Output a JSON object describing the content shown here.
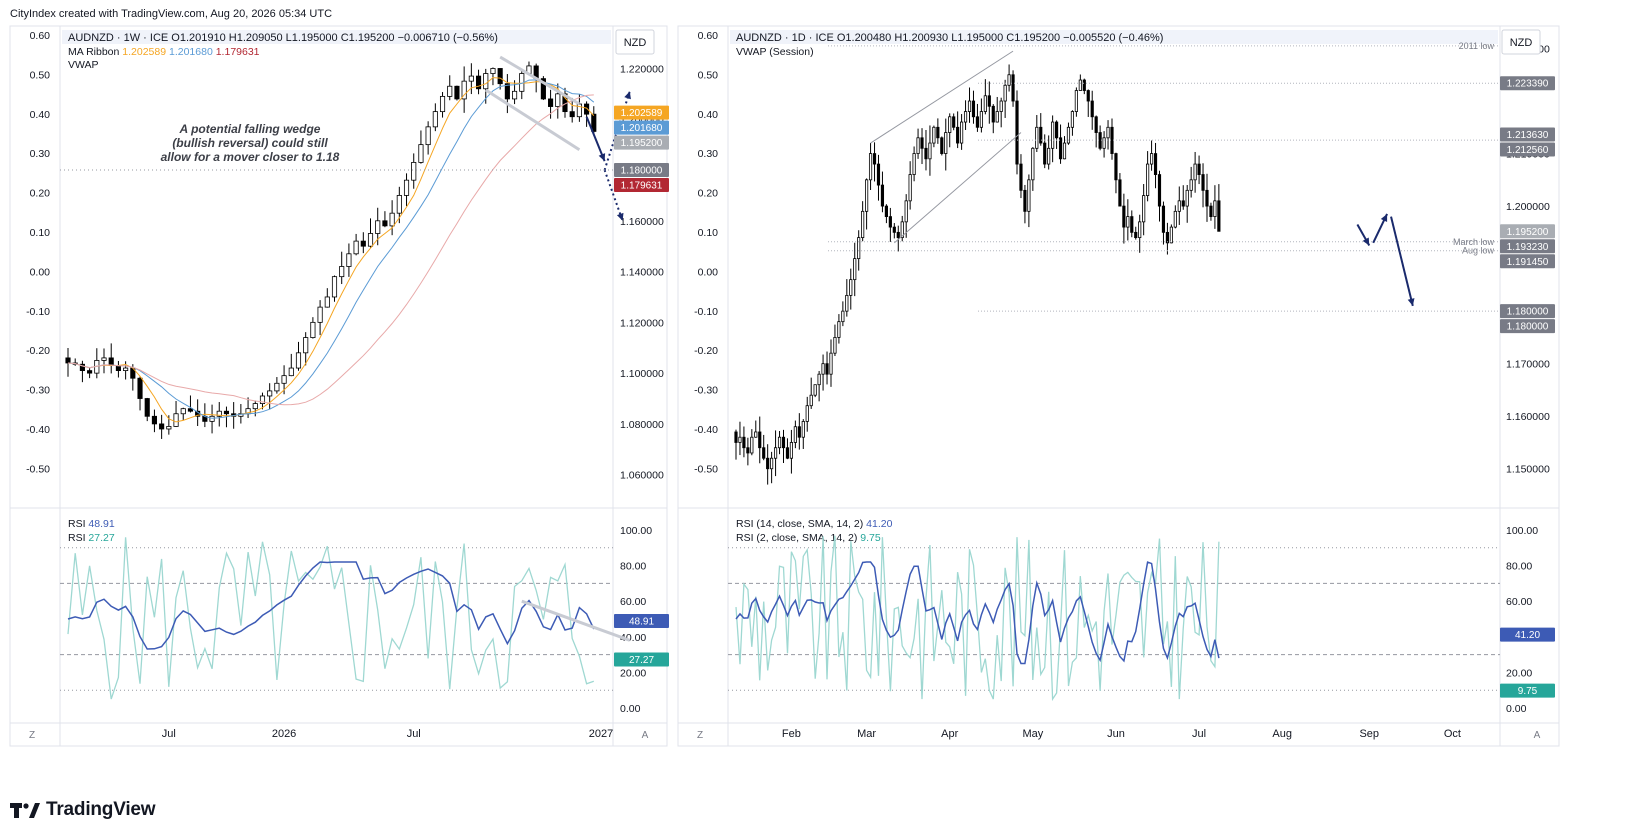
{
  "attribution": "CityIndex created with TradingView.com, Aug 20, 2026 05:34 UTC",
  "brand": "TradingView",
  "colors": {
    "up_candle": "#ffffff",
    "down_candle": "#000000",
    "ma_fast": "#f5a623",
    "ma_mid": "#5b9bd5",
    "ma_slow": "#e8a9a9",
    "rsi14": "#3d5bb5",
    "rsi2": "#9fd8d2",
    "arrow": "#1a2a6c"
  },
  "chart_data": [
    {
      "type": "candlestick",
      "title": "AUDNZD · 1W · ICE",
      "ohlc": "O1.201910 H1.209050 L1.195000 C1.195200 −0.006710 (−0.56%)",
      "currency": "NZD",
      "ma_ribbon": {
        "label": "MA Ribbon",
        "values": [
          "1.202589",
          "1.201680",
          "1.179631"
        ]
      },
      "vwap_label": "VWAP",
      "right_axis": {
        "ticks": [
          "1.220000",
          "1.200000",
          "1.180000",
          "1.160000",
          "1.140000",
          "1.120000",
          "1.100000",
          "1.080000",
          "1.060000"
        ],
        "range": [
          1.052,
          1.232
        ]
      },
      "left_axis": {
        "ticks": [
          "0.60",
          "0.50",
          "0.40",
          "0.30",
          "0.20",
          "0.10",
          "0.00",
          "-0.10",
          "-0.20",
          "-0.30",
          "-0.40",
          "-0.50"
        ]
      },
      "price_tags": [
        {
          "text": "1.202589",
          "value": 1.202589,
          "color": "#f5a623"
        },
        {
          "text": "1.201680",
          "value": 1.20168,
          "color": "#5b9bd5"
        },
        {
          "text": "1.195200",
          "value": 1.1952,
          "color": "#a9adb3"
        },
        {
          "text": "1.180000",
          "value": 1.18,
          "color": "#787b86"
        },
        {
          "text": "1.179631",
          "value": 1.179631,
          "color": "#b22833"
        }
      ],
      "x_labels": [
        {
          "text": "Jul",
          "index": 14
        },
        {
          "text": "2026",
          "index": 30
        },
        {
          "text": "Jul",
          "index": 48
        },
        {
          "text": "2027",
          "index": 74
        }
      ],
      "annotation": [
        "A potential falling wedge",
        "(bullish reversal) could still",
        "allow for a mover closer to 1.18"
      ],
      "series_close": [
        1.104,
        1.1035,
        1.101,
        1.1,
        1.105,
        1.106,
        1.103,
        1.101,
        1.102,
        1.098,
        1.09,
        1.083,
        1.08,
        1.078,
        1.079,
        1.084,
        1.086,
        1.085,
        1.083,
        1.081,
        1.083,
        1.085,
        1.084,
        1.083,
        1.084,
        1.086,
        1.088,
        1.091,
        1.093,
        1.096,
        1.099,
        1.102,
        1.108,
        1.114,
        1.12,
        1.126,
        1.13,
        1.138,
        1.142,
        1.147,
        1.152,
        1.15,
        1.155,
        1.16,
        1.158,
        1.163,
        1.17,
        1.176,
        1.183,
        1.19,
        1.197,
        1.203,
        1.209,
        1.213,
        1.208,
        1.215,
        1.217,
        1.212,
        1.218,
        1.22,
        1.214,
        1.208,
        1.211,
        1.218,
        1.221,
        1.216,
        1.208,
        1.205,
        1.21,
        1.203,
        1.201,
        1.206,
        1.202,
        1.1952
      ],
      "rsi": {
        "labels": [
          "RSI",
          "RSI"
        ],
        "values": [
          "48.91",
          "27.27"
        ],
        "ticks": [
          "100.00",
          "80.00",
          "60.00",
          "40.00",
          "20.00",
          "0.00"
        ],
        "levels": [
          90,
          70,
          30,
          10
        ]
      }
    },
    {
      "type": "candlestick",
      "title": "AUDNZD · 1D · ICE",
      "ohlc": "O1.200480 H1.200930 L1.195000 C1.195200 −0.005520 (−0.46%)",
      "currency": "NZD",
      "vwap_label": "VWAP (Session)",
      "right_axis": {
        "ticks": [
          "1.230000",
          "1.210000",
          "1.200000",
          "1.170000",
          "1.160000",
          "1.150000"
        ],
        "range": [
          1.145,
          1.232
        ]
      },
      "left_axis": {
        "ticks": [
          "0.60",
          "0.50",
          "0.40",
          "0.30",
          "0.20",
          "0.10",
          "0.00",
          "-0.10",
          "-0.20",
          "-0.30",
          "-0.40",
          "-0.50"
        ]
      },
      "price_tags": [
        {
          "text": "1.223390",
          "value": 1.22339,
          "color": "#787b86"
        },
        {
          "text": "1.213630",
          "value": 1.21363,
          "color": "#787b86"
        },
        {
          "text": "1.212560",
          "value": 1.21256,
          "color": "#787b86"
        },
        {
          "text": "1.195200",
          "value": 1.1952,
          "color": "#a9adb3"
        },
        {
          "text": "1.193230",
          "value": 1.19323,
          "color": "#787b86"
        },
        {
          "text": "1.191450",
          "value": 1.19145,
          "color": "#787b86"
        },
        {
          "text": "1.180000",
          "value": 1.18,
          "color": "#787b86"
        },
        {
          "text": "1.180000",
          "value": 1.18,
          "color": "#787b86"
        }
      ],
      "level_labels": [
        {
          "text": "2011 low",
          "value": 1.2305
        },
        {
          "text": "March low",
          "value": 1.1932
        },
        {
          "text": "Aug low",
          "value": 1.1915
        }
      ],
      "x_labels": [
        {
          "text": "Feb",
          "index": 14
        },
        {
          "text": "Mar",
          "index": 33
        },
        {
          "text": "Apr",
          "index": 54
        },
        {
          "text": "May",
          "index": 75
        },
        {
          "text": "Jun",
          "index": 96
        },
        {
          "text": "Jul",
          "index": 117
        },
        {
          "text": "Aug",
          "index": 138
        },
        {
          "text": "Sep",
          "index": 160
        },
        {
          "text": "Oct",
          "index": 181
        }
      ],
      "series_close": [
        1.155,
        1.156,
        1.154,
        1.153,
        1.156,
        1.157,
        1.154,
        1.152,
        1.15,
        1.152,
        1.154,
        1.156,
        1.154,
        1.152,
        1.155,
        1.158,
        1.156,
        1.159,
        1.162,
        1.164,
        1.166,
        1.168,
        1.17,
        1.168,
        1.172,
        1.175,
        1.178,
        1.18,
        1.183,
        1.186,
        1.19,
        1.194,
        1.199,
        1.205,
        1.21,
        1.208,
        1.204,
        1.2,
        1.198,
        1.196,
        1.195,
        1.194,
        1.197,
        1.201,
        1.206,
        1.21,
        1.213,
        1.211,
        1.209,
        1.212,
        1.215,
        1.213,
        1.21,
        1.214,
        1.217,
        1.215,
        1.212,
        1.216,
        1.218,
        1.22,
        1.217,
        1.215,
        1.218,
        1.221,
        1.219,
        1.216,
        1.218,
        1.22,
        1.223,
        1.225,
        1.22,
        1.208,
        1.203,
        1.199,
        1.205,
        1.211,
        1.215,
        1.212,
        1.208,
        1.211,
        1.216,
        1.213,
        1.209,
        1.212,
        1.215,
        1.218,
        1.222,
        1.224,
        1.222,
        1.22,
        1.217,
        1.214,
        1.211,
        1.213,
        1.215,
        1.21,
        1.205,
        1.2,
        1.196,
        1.198,
        1.195,
        1.194,
        1.197,
        1.202,
        1.208,
        1.21,
        1.206,
        1.2,
        1.195,
        1.193,
        1.196,
        1.199,
        1.201,
        1.2,
        1.203,
        1.205,
        1.208,
        1.206,
        1.203,
        1.2,
        1.198,
        1.201,
        1.1952
      ],
      "rsi": {
        "labels": [
          "RSI (14, close, SMA, 14, 2)",
          "RSI (2, close, SMA, 14, 2)"
        ],
        "values": [
          "41.20",
          "9.75"
        ],
        "ticks": [
          "100.00",
          "80.00",
          "60.00",
          "40.00",
          "20.00",
          "0.00"
        ],
        "levels": [
          90,
          70,
          30,
          10
        ]
      }
    }
  ]
}
